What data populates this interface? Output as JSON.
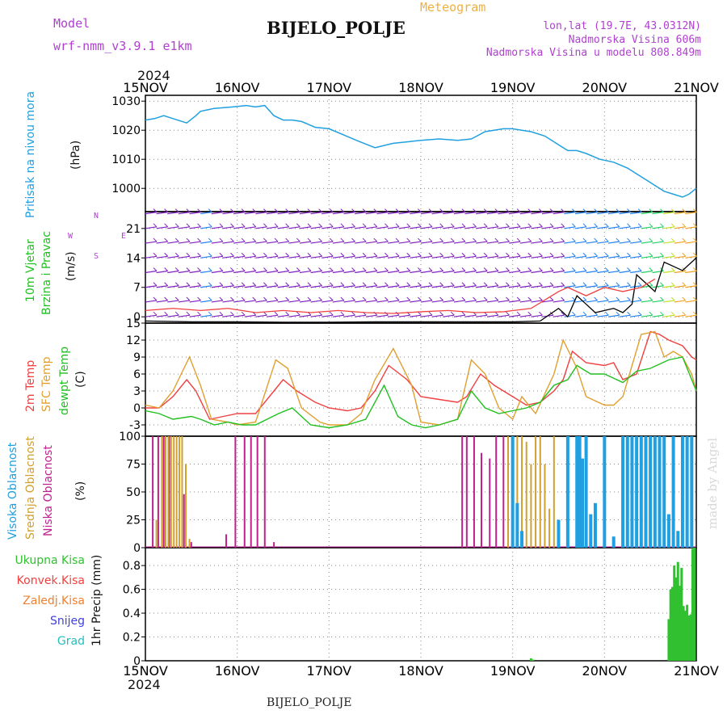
{
  "header": {
    "model_label": "Model",
    "model_name": "wrf-nmm_v3.9.1 e1km",
    "meteogram_label": "Meteogram",
    "station": "BIJELO_POLJE",
    "lonlat": "lon,lat (19.7E, 43.0312N)",
    "altitude": "Nadmorska Visina 606m",
    "model_altitude": "Nadmorska Visina u modelu 808.849m",
    "footer_station": "BIJELO_POLJE",
    "watermark": "made by Angel",
    "year_top": "2024",
    "year_bottom": "2024"
  },
  "time_axis": {
    "ticks": [
      "15NOV",
      "16NOV",
      "17NOV",
      "18NOV",
      "19NOV",
      "20NOV",
      "21NOV"
    ]
  },
  "panel_labels": {
    "pressure": {
      "name": "Pritisak na nivou mora",
      "unit": "(hPa)",
      "color": "#20a0e0"
    },
    "wind": {
      "name1": "10m Vjetar",
      "name2": "Brzina i Pravac",
      "unit": "(m/s)",
      "color": "#20c020",
      "compass_n": "N",
      "compass_s": "S",
      "compass_w": "W",
      "compass_e": "E"
    },
    "temp": {
      "t2m": "2m Temp",
      "sfc": "SFC Temp",
      "dewpt": "dewpt Temp",
      "unit": "(C)",
      "colors": {
        "t2m": "#f04040",
        "sfc": "#e0a030",
        "dewpt": "#20c020"
      }
    },
    "cloud": {
      "high": "Visoka Oblacnost",
      "mid": "Srednja Oblacnost",
      "low": "Niska Oblacnost",
      "unit": "(%)",
      "colors": {
        "high": "#20a0e0",
        "mid": "#d0a030",
        "low": "#c02090"
      }
    },
    "precip": {
      "unit": "1hr Precip (mm)",
      "items": [
        {
          "label": "Ukupna Kisa",
          "color": "#30c030"
        },
        {
          "label": "Konvek.Kisa",
          "color": "#f04040"
        },
        {
          "label": "Zaledj.Kisa",
          "color": "#f08030"
        },
        {
          "label": "Snijeg",
          "color": "#4040e0"
        },
        {
          "label": "Grad",
          "color": "#20c0c0"
        }
      ]
    }
  },
  "chart_data": [
    {
      "type": "line",
      "name": "pressure",
      "ylabel": "(hPa)",
      "ylim": [
        992,
        1032
      ],
      "yticks": [
        1000,
        1010,
        1020,
        1030
      ],
      "x_days": [
        0,
        0.1,
        0.2,
        0.3,
        0.45,
        0.55,
        0.6,
        0.75,
        0.95,
        1.1,
        1.2,
        1.3,
        1.4,
        1.5,
        1.6,
        1.7,
        1.85,
        2.0,
        2.15,
        2.3,
        2.5,
        2.7,
        2.85,
        3.0,
        3.2,
        3.4,
        3.55,
        3.7,
        3.9,
        4.0,
        4.1,
        4.2,
        4.35,
        4.5,
        4.6,
        4.7,
        4.8,
        4.95,
        5.1,
        5.25,
        5.35,
        5.45,
        5.55,
        5.65,
        5.75,
        5.85,
        5.92,
        6.0
      ],
      "values": [
        1023.5,
        1024,
        1025,
        1024,
        1022.5,
        1025,
        1026.5,
        1027.5,
        1028,
        1028.5,
        1028,
        1028.5,
        1025,
        1023.5,
        1023.5,
        1023,
        1021,
        1020.5,
        1018.5,
        1016.5,
        1014,
        1015.5,
        1016,
        1016.5,
        1017,
        1016.5,
        1017,
        1019.5,
        1020.5,
        1020.5,
        1020,
        1019.5,
        1018,
        1015,
        1013,
        1013,
        1012,
        1010,
        1009,
        1007,
        1005,
        1003,
        1001,
        999,
        998,
        997,
        998,
        1000
      ],
      "color": "#20a0e0"
    },
    {
      "type": "line",
      "name": "wind",
      "ylabel": "(m/s)",
      "ylim": [
        -1.5,
        25
      ],
      "yticks": [
        0,
        7,
        14,
        21
      ],
      "barb_levels": [
        0,
        3.5,
        7,
        10.5,
        14,
        17.5,
        21,
        24.5
      ],
      "series": [
        {
          "values_x": [
            0,
            0.5,
            1.0,
            1.5,
            2.0,
            2.5,
            3.0,
            3.5,
            4.0,
            4.3,
            4.5,
            4.6,
            4.7,
            4.8,
            4.9,
            5.0,
            5.1,
            5.2,
            5.3,
            5.35,
            5.45,
            5.55,
            5.65,
            5.75,
            5.85,
            6.0
          ],
          "values": [
            -1,
            -1.2,
            -1.2,
            -1.3,
            -1.3,
            -1.2,
            -1.2,
            -1.2,
            -1.2,
            -1,
            2,
            0,
            5,
            3,
            1,
            1.5,
            2,
            1,
            3,
            10,
            8,
            6,
            13,
            12,
            11,
            14
          ],
          "color": "#000000"
        },
        {
          "values_x": [
            0,
            0.3,
            0.6,
            0.9,
            1.2,
            1.5,
            1.8,
            2.1,
            2.4,
            2.7,
            3.0,
            3.3,
            3.6,
            3.9,
            4.2,
            4.5,
            4.6,
            4.8,
            5.0,
            5.2,
            5.4,
            5.55
          ],
          "values": [
            1.5,
            2,
            1.5,
            2,
            1,
            1.5,
            1,
            1.5,
            1,
            0.8,
            1.2,
            1.5,
            1,
            1.2,
            2,
            6,
            7,
            5,
            7,
            6,
            7,
            9
          ],
          "color": "#f04040"
        }
      ]
    },
    {
      "type": "line",
      "name": "temperature",
      "ylabel": "(C)",
      "ylim": [
        -5,
        15
      ],
      "yticks": [
        -3,
        0,
        3,
        6,
        9,
        12,
        15
      ],
      "series": [
        {
          "name": "2m Temp",
          "color": "#f04040",
          "x": [
            0,
            0.15,
            0.3,
            0.45,
            0.55,
            0.7,
            0.85,
            1.0,
            1.2,
            1.4,
            1.5,
            1.65,
            1.85,
            2.0,
            2.2,
            2.35,
            2.5,
            2.65,
            2.85,
            3.0,
            3.2,
            3.4,
            3.5,
            3.65,
            3.8,
            4.0,
            4.15,
            4.3,
            4.45,
            4.55,
            4.65,
            4.8,
            5.0,
            5.1,
            5.2,
            5.35,
            5.5,
            5.6,
            5.7,
            5.85,
            5.95,
            6.0
          ],
          "values": [
            0,
            0,
            2,
            5,
            3,
            -2,
            -1.5,
            -1,
            -1,
            3,
            5,
            3,
            1,
            0,
            -0.5,
            0,
            3,
            7.5,
            5,
            2,
            1.5,
            1,
            2,
            6,
            4,
            2,
            0.5,
            1,
            3,
            5,
            10,
            8,
            7.5,
            8,
            5,
            6,
            13.5,
            13,
            12,
            11,
            9,
            8.5
          ]
        },
        {
          "name": "SFC Temp",
          "color": "#e0a030",
          "x": [
            0,
            0.15,
            0.3,
            0.48,
            0.6,
            0.72,
            0.9,
            1.0,
            1.2,
            1.42,
            1.55,
            1.7,
            1.9,
            2.0,
            2.2,
            2.35,
            2.5,
            2.7,
            2.9,
            3.0,
            3.2,
            3.4,
            3.55,
            3.7,
            3.85,
            4.0,
            4.1,
            4.25,
            4.45,
            4.55,
            4.7,
            4.8,
            5.0,
            5.1,
            5.2,
            5.4,
            5.55,
            5.65,
            5.75,
            5.85,
            5.95,
            6.0
          ],
          "values": [
            0.5,
            0,
            3,
            9,
            4,
            -2,
            -2.5,
            -3,
            -2.5,
            8.5,
            7,
            0,
            -2.5,
            -3,
            -3,
            -1,
            5,
            10.5,
            4,
            -2.5,
            -3,
            -2,
            8.5,
            6,
            0,
            -2,
            2,
            -1,
            6,
            12,
            7,
            2,
            0.5,
            0.5,
            2,
            13,
            13.5,
            9,
            10,
            9,
            6,
            3
          ]
        },
        {
          "name": "dewpt Temp",
          "color": "#20c020",
          "x": [
            0,
            0.15,
            0.3,
            0.5,
            0.6,
            0.75,
            0.9,
            1.05,
            1.2,
            1.45,
            1.6,
            1.8,
            2.0,
            2.2,
            2.4,
            2.6,
            2.75,
            2.9,
            3.05,
            3.2,
            3.4,
            3.55,
            3.7,
            3.85,
            4.0,
            4.15,
            4.3,
            4.45,
            4.6,
            4.7,
            4.85,
            5.0,
            5.2,
            5.35,
            5.5,
            5.7,
            5.85,
            5.95,
            6.0
          ],
          "values": [
            -0.5,
            -1,
            -2,
            -1.5,
            -2,
            -3,
            -2.5,
            -3,
            -3,
            -1,
            0,
            -3,
            -3.5,
            -3,
            -2,
            4,
            -1.5,
            -3,
            -3.5,
            -3,
            -2,
            3,
            0,
            -1,
            -0.5,
            0,
            1,
            4,
            5,
            7.5,
            6,
            6,
            4.5,
            6.5,
            7,
            8.5,
            9,
            5,
            3
          ]
        }
      ]
    },
    {
      "type": "bar",
      "name": "cloud",
      "ylabel": "(%)",
      "ylim": [
        0,
        100
      ],
      "yticks": [
        0,
        25,
        50,
        75,
        100
      ],
      "series": [
        {
          "name": "Niska Oblacnost",
          "color": "#c02090",
          "x": [
            0.08,
            0.14,
            0.2,
            0.26,
            0.42,
            0.5,
            0.88,
            0.98,
            1.08,
            1.15,
            1.22,
            1.3,
            1.4,
            3.45,
            3.5,
            3.58,
            3.66,
            3.75,
            3.82,
            3.9
          ],
          "values": [
            100,
            100,
            100,
            100,
            48,
            5,
            12,
            100,
            100,
            100,
            100,
            100,
            5,
            100,
            100,
            100,
            85,
            80,
            100,
            100
          ]
        },
        {
          "name": "Srednja Oblacnost",
          "color": "#d0a030",
          "x": [
            0.12,
            0.18,
            0.22,
            0.25,
            0.28,
            0.31,
            0.34,
            0.37,
            0.4,
            0.44,
            0.48,
            3.95,
            4.0,
            4.05,
            4.1,
            4.15,
            4.2,
            4.25,
            4.3,
            4.35,
            4.4,
            4.45,
            5.0,
            5.1,
            5.2,
            5.25,
            5.3,
            5.4,
            5.5,
            5.6
          ],
          "values": [
            25,
            100,
            100,
            100,
            100,
            100,
            100,
            100,
            100,
            75,
            8,
            100,
            100,
            100,
            100,
            95,
            75,
            100,
            100,
            75,
            35,
            100,
            15,
            8,
            30,
            60,
            100,
            100,
            75,
            10
          ]
        },
        {
          "name": "Visoka Oblacnost",
          "color": "#20a0e0",
          "x": [
            4.0,
            4.05,
            4.1,
            4.5,
            4.6,
            4.7,
            4.73,
            4.76,
            4.8,
            4.85,
            4.9,
            5.0,
            5.1,
            5.2,
            5.25,
            5.3,
            5.35,
            5.4,
            5.45,
            5.5,
            5.55,
            5.6,
            5.65,
            5.7,
            5.75,
            5.8,
            5.85,
            5.9,
            5.95
          ],
          "values": [
            100,
            40,
            15,
            25,
            100,
            100,
            100,
            80,
            100,
            30,
            40,
            100,
            10,
            100,
            100,
            100,
            100,
            100,
            100,
            100,
            100,
            100,
            100,
            30,
            100,
            15,
            100,
            100,
            100
          ]
        }
      ]
    },
    {
      "type": "bar",
      "name": "precipitation",
      "ylabel": "1hr Precip (mm)",
      "ylim": [
        0,
        0.95
      ],
      "yticks": [
        0,
        0.2,
        0.4,
        0.6,
        0.8
      ],
      "series": [
        {
          "name": "Ukupna Kisa",
          "color": "#30c030",
          "x": [
            4.2,
            4.22,
            5.7,
            5.72,
            5.74,
            5.76,
            5.78,
            5.8,
            5.82,
            5.84,
            5.86,
            5.88,
            5.9,
            5.92,
            5.94,
            5.96,
            5.98
          ],
          "values": [
            0.02,
            0.01,
            0.35,
            0.6,
            0.62,
            0.8,
            0.7,
            0.83,
            0.63,
            0.78,
            0.46,
            0.42,
            0.47,
            0.38,
            0.39,
            0.94,
            0.95
          ]
        }
      ]
    }
  ]
}
